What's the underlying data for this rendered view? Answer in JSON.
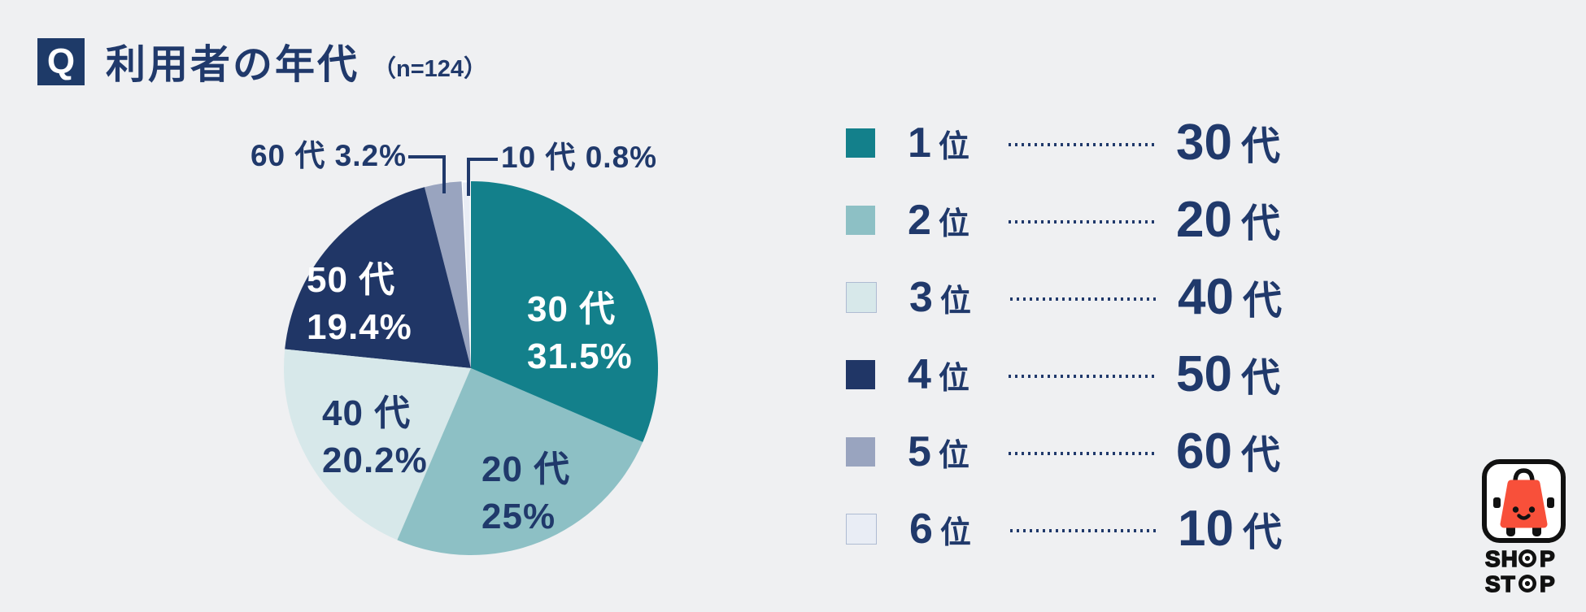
{
  "page": {
    "background": "#EFF0F2",
    "text_navy": "#20396B"
  },
  "header": {
    "badge": "Q",
    "title": "利用者の年代",
    "sample_size": "（n=124）"
  },
  "chart_data": {
    "type": "pie",
    "title": "利用者の年代",
    "n": 124,
    "unit": "%",
    "direction": "clockwise",
    "start_angle_deg": 0,
    "slices": [
      {
        "label": "30 代",
        "value": 31.5,
        "display": "31.5%",
        "color": "#13808B",
        "text_color": "#FFFFFF",
        "rank": 1
      },
      {
        "label": "20 代",
        "value": 25.0,
        "display": "25%",
        "color": "#8DC0C5",
        "text_color": "#20396B",
        "rank": 2
      },
      {
        "label": "40 代",
        "value": 20.2,
        "display": "20.2%",
        "color": "#D7E8EA",
        "text_color": "#20396B",
        "rank": 3
      },
      {
        "label": "50 代",
        "value": 19.4,
        "display": "19.4%",
        "color": "#203666",
        "text_color": "#FFFFFF",
        "rank": 4
      },
      {
        "label": "60 代",
        "value": 3.2,
        "display": "3.2%",
        "color": "#99A4BF",
        "callout": "60 代 3.2%",
        "rank": 5
      },
      {
        "label": "10 代",
        "value": 0.8,
        "display": "0.8%",
        "color": "#E9EDF5",
        "callout": "10 代 0.8%",
        "rank": 6
      }
    ]
  },
  "legend": {
    "items": [
      {
        "rank": "1 位",
        "answer": "30 代",
        "color": "#13808B"
      },
      {
        "rank": "2 位",
        "answer": "20 代",
        "color": "#8DC0C5"
      },
      {
        "rank": "3 位",
        "answer": "40 代",
        "color": "#D7E8EA",
        "bordered": true
      },
      {
        "rank": "4 位",
        "answer": "50 代",
        "color": "#203666"
      },
      {
        "rank": "5 位",
        "answer": "60 代",
        "color": "#99A4BF"
      },
      {
        "rank": "6 位",
        "answer": "10 代",
        "color": "#E9EDF5",
        "bordered": true
      }
    ]
  },
  "logo": {
    "line1": "SHOP",
    "line2": "STOP",
    "car_color": "#F8503A"
  }
}
